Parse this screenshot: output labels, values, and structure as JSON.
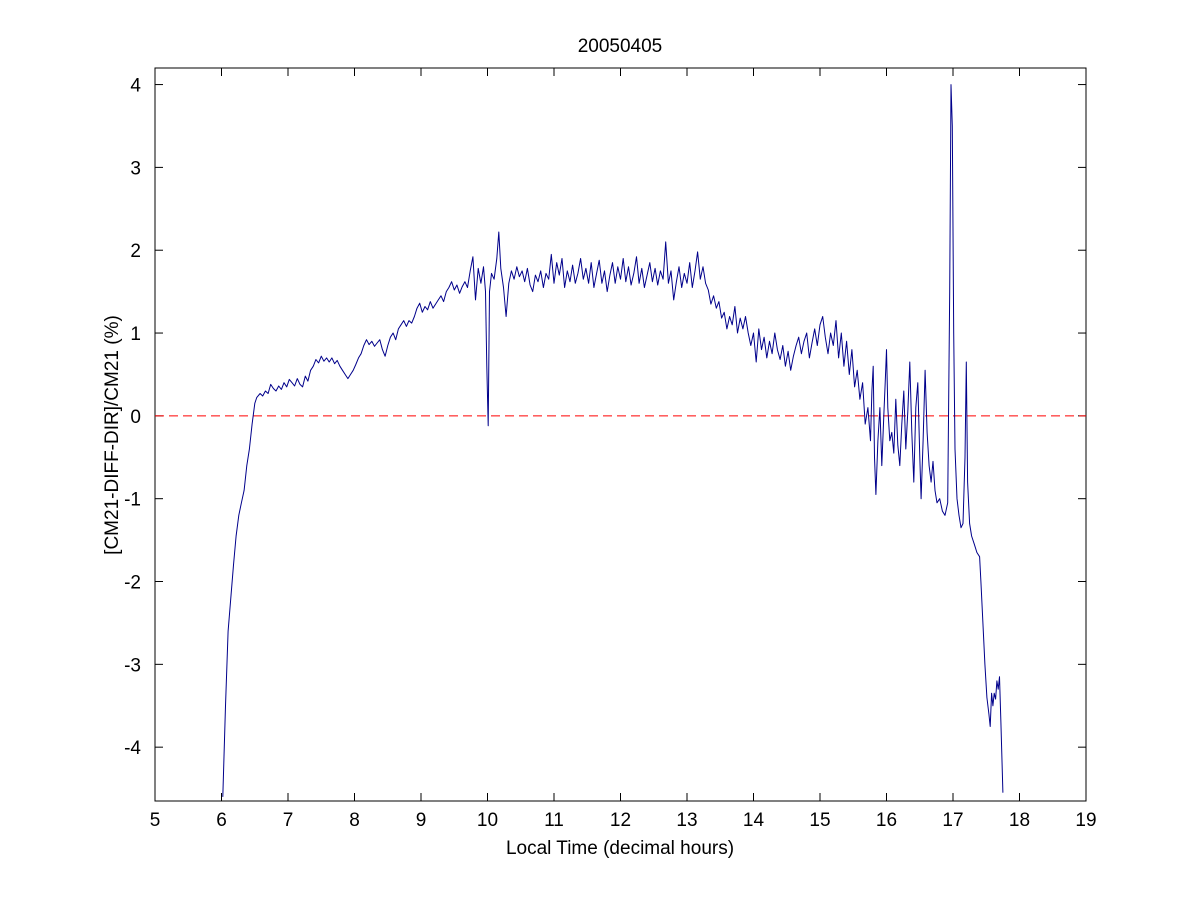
{
  "chart_data": {
    "type": "line",
    "title": "20050405",
    "xlabel": "Local Time (decimal hours)",
    "ylabel": "[CM21-DIFF-DIR]/CM21 (%)",
    "xlim": [
      5,
      19
    ],
    "ylim": [
      -4.65,
      4.2
    ],
    "xticks": [
      5,
      6,
      7,
      8,
      9,
      10,
      11,
      12,
      13,
      14,
      15,
      16,
      17,
      18,
      19
    ],
    "yticks": [
      -4,
      -3,
      -2,
      -1,
      0,
      1,
      2,
      3,
      4
    ],
    "grid": false,
    "reference_line": {
      "y": 0,
      "color": "#ff0000",
      "style": "dashed"
    },
    "series": [
      {
        "color": "#00008b",
        "points": [
          [
            6.02,
            -4.6
          ],
          [
            6.06,
            -3.5
          ],
          [
            6.1,
            -2.6
          ],
          [
            6.14,
            -2.2
          ],
          [
            6.18,
            -1.8
          ],
          [
            6.22,
            -1.45
          ],
          [
            6.26,
            -1.2
          ],
          [
            6.3,
            -1.05
          ],
          [
            6.34,
            -0.9
          ],
          [
            6.38,
            -0.6
          ],
          [
            6.42,
            -0.4
          ],
          [
            6.46,
            -0.1
          ],
          [
            6.5,
            0.15
          ],
          [
            6.53,
            0.22
          ],
          [
            6.58,
            0.27
          ],
          [
            6.62,
            0.24
          ],
          [
            6.66,
            0.3
          ],
          [
            6.7,
            0.27
          ],
          [
            6.74,
            0.38
          ],
          [
            6.78,
            0.33
          ],
          [
            6.82,
            0.3
          ],
          [
            6.86,
            0.36
          ],
          [
            6.9,
            0.32
          ],
          [
            6.94,
            0.4
          ],
          [
            6.98,
            0.35
          ],
          [
            7.02,
            0.44
          ],
          [
            7.06,
            0.4
          ],
          [
            7.1,
            0.36
          ],
          [
            7.14,
            0.45
          ],
          [
            7.18,
            0.38
          ],
          [
            7.22,
            0.35
          ],
          [
            7.26,
            0.48
          ],
          [
            7.3,
            0.42
          ],
          [
            7.34,
            0.55
          ],
          [
            7.38,
            0.6
          ],
          [
            7.42,
            0.68
          ],
          [
            7.46,
            0.64
          ],
          [
            7.5,
            0.72
          ],
          [
            7.54,
            0.66
          ],
          [
            7.58,
            0.7
          ],
          [
            7.62,
            0.65
          ],
          [
            7.66,
            0.7
          ],
          [
            7.7,
            0.63
          ],
          [
            7.74,
            0.67
          ],
          [
            7.78,
            0.6
          ],
          [
            7.82,
            0.55
          ],
          [
            7.86,
            0.5
          ],
          [
            7.9,
            0.45
          ],
          [
            7.94,
            0.5
          ],
          [
            7.98,
            0.55
          ],
          [
            8.02,
            0.62
          ],
          [
            8.06,
            0.7
          ],
          [
            8.1,
            0.75
          ],
          [
            8.14,
            0.85
          ],
          [
            8.18,
            0.92
          ],
          [
            8.22,
            0.86
          ],
          [
            8.26,
            0.9
          ],
          [
            8.3,
            0.84
          ],
          [
            8.34,
            0.88
          ],
          [
            8.38,
            0.92
          ],
          [
            8.42,
            0.8
          ],
          [
            8.46,
            0.72
          ],
          [
            8.5,
            0.85
          ],
          [
            8.54,
            0.95
          ],
          [
            8.58,
            1.0
          ],
          [
            8.62,
            0.92
          ],
          [
            8.66,
            1.05
          ],
          [
            8.7,
            1.1
          ],
          [
            8.74,
            1.15
          ],
          [
            8.78,
            1.08
          ],
          [
            8.82,
            1.15
          ],
          [
            8.86,
            1.12
          ],
          [
            8.9,
            1.2
          ],
          [
            8.94,
            1.3
          ],
          [
            8.98,
            1.36
          ],
          [
            9.02,
            1.25
          ],
          [
            9.06,
            1.32
          ],
          [
            9.1,
            1.28
          ],
          [
            9.14,
            1.38
          ],
          [
            9.18,
            1.3
          ],
          [
            9.22,
            1.35
          ],
          [
            9.26,
            1.4
          ],
          [
            9.3,
            1.45
          ],
          [
            9.34,
            1.38
          ],
          [
            9.38,
            1.5
          ],
          [
            9.42,
            1.55
          ],
          [
            9.46,
            1.62
          ],
          [
            9.5,
            1.52
          ],
          [
            9.54,
            1.58
          ],
          [
            9.58,
            1.48
          ],
          [
            9.62,
            1.56
          ],
          [
            9.66,
            1.62
          ],
          [
            9.7,
            1.55
          ],
          [
            9.74,
            1.75
          ],
          [
            9.78,
            1.92
          ],
          [
            9.82,
            1.4
          ],
          [
            9.86,
            1.78
          ],
          [
            9.9,
            1.6
          ],
          [
            9.94,
            1.8
          ],
          [
            9.97,
            1.5
          ],
          [
            9.99,
            0.6
          ],
          [
            10.01,
            -0.12
          ],
          [
            10.03,
            1.5
          ],
          [
            10.06,
            1.72
          ],
          [
            10.1,
            1.65
          ],
          [
            10.14,
            1.9
          ],
          [
            10.17,
            2.22
          ],
          [
            10.2,
            1.78
          ],
          [
            10.24,
            1.55
          ],
          [
            10.28,
            1.2
          ],
          [
            10.32,
            1.6
          ],
          [
            10.36,
            1.75
          ],
          [
            10.4,
            1.65
          ],
          [
            10.44,
            1.8
          ],
          [
            10.48,
            1.68
          ],
          [
            10.52,
            1.75
          ],
          [
            10.56,
            1.62
          ],
          [
            10.6,
            1.78
          ],
          [
            10.64,
            1.58
          ],
          [
            10.68,
            1.5
          ],
          [
            10.72,
            1.7
          ],
          [
            10.76,
            1.62
          ],
          [
            10.8,
            1.75
          ],
          [
            10.84,
            1.55
          ],
          [
            10.88,
            1.72
          ],
          [
            10.92,
            1.65
          ],
          [
            10.96,
            1.95
          ],
          [
            11.0,
            1.6
          ],
          [
            11.04,
            1.85
          ],
          [
            11.08,
            1.7
          ],
          [
            11.12,
            1.9
          ],
          [
            11.16,
            1.55
          ],
          [
            11.2,
            1.75
          ],
          [
            11.24,
            1.62
          ],
          [
            11.28,
            1.82
          ],
          [
            11.32,
            1.6
          ],
          [
            11.36,
            1.72
          ],
          [
            11.4,
            1.9
          ],
          [
            11.44,
            1.65
          ],
          [
            11.48,
            1.78
          ],
          [
            11.52,
            1.6
          ],
          [
            11.56,
            1.85
          ],
          [
            11.6,
            1.55
          ],
          [
            11.64,
            1.72
          ],
          [
            11.68,
            1.88
          ],
          [
            11.72,
            1.6
          ],
          [
            11.76,
            1.75
          ],
          [
            11.8,
            1.5
          ],
          [
            11.84,
            1.7
          ],
          [
            11.88,
            1.85
          ],
          [
            11.92,
            1.6
          ],
          [
            11.96,
            1.8
          ],
          [
            12.0,
            1.65
          ],
          [
            12.04,
            1.9
          ],
          [
            12.08,
            1.62
          ],
          [
            12.12,
            1.8
          ],
          [
            12.16,
            1.58
          ],
          [
            12.2,
            1.72
          ],
          [
            12.24,
            1.92
          ],
          [
            12.28,
            1.6
          ],
          [
            12.32,
            1.78
          ],
          [
            12.36,
            1.55
          ],
          [
            12.4,
            1.7
          ],
          [
            12.44,
            1.85
          ],
          [
            12.48,
            1.62
          ],
          [
            12.52,
            1.78
          ],
          [
            12.56,
            1.58
          ],
          [
            12.6,
            1.75
          ],
          [
            12.64,
            1.65
          ],
          [
            12.68,
            2.1
          ],
          [
            12.72,
            1.6
          ],
          [
            12.76,
            1.75
          ],
          [
            12.8,
            1.4
          ],
          [
            12.84,
            1.62
          ],
          [
            12.88,
            1.8
          ],
          [
            12.92,
            1.55
          ],
          [
            12.96,
            1.72
          ],
          [
            13.0,
            1.6
          ],
          [
            13.04,
            1.85
          ],
          [
            13.08,
            1.55
          ],
          [
            13.12,
            1.75
          ],
          [
            13.16,
            1.98
          ],
          [
            13.2,
            1.65
          ],
          [
            13.24,
            1.8
          ],
          [
            13.28,
            1.6
          ],
          [
            13.32,
            1.52
          ],
          [
            13.36,
            1.35
          ],
          [
            13.4,
            1.45
          ],
          [
            13.44,
            1.3
          ],
          [
            13.48,
            1.38
          ],
          [
            13.52,
            1.18
          ],
          [
            13.56,
            1.25
          ],
          [
            13.6,
            1.05
          ],
          [
            13.64,
            1.2
          ],
          [
            13.68,
            1.1
          ],
          [
            13.72,
            1.32
          ],
          [
            13.76,
            1.0
          ],
          [
            13.8,
            1.18
          ],
          [
            13.84,
            1.05
          ],
          [
            13.88,
            1.2
          ],
          [
            13.92,
            1.0
          ],
          [
            13.96,
            0.85
          ],
          [
            14.0,
            1.0
          ],
          [
            14.04,
            0.65
          ],
          [
            14.08,
            1.05
          ],
          [
            14.12,
            0.8
          ],
          [
            14.16,
            0.95
          ],
          [
            14.2,
            0.7
          ],
          [
            14.24,
            0.9
          ],
          [
            14.28,
            0.75
          ],
          [
            14.32,
            1.0
          ],
          [
            14.36,
            0.8
          ],
          [
            14.4,
            0.68
          ],
          [
            14.44,
            0.85
          ],
          [
            14.48,
            0.6
          ],
          [
            14.52,
            0.78
          ],
          [
            14.56,
            0.55
          ],
          [
            14.6,
            0.72
          ],
          [
            14.64,
            0.85
          ],
          [
            14.68,
            0.95
          ],
          [
            14.72,
            0.75
          ],
          [
            14.76,
            0.9
          ],
          [
            14.8,
            1.0
          ],
          [
            14.84,
            0.7
          ],
          [
            14.88,
            0.88
          ],
          [
            14.92,
            1.05
          ],
          [
            14.96,
            0.85
          ],
          [
            15.0,
            1.1
          ],
          [
            15.04,
            1.2
          ],
          [
            15.08,
            0.95
          ],
          [
            15.12,
            0.75
          ],
          [
            15.16,
            1.0
          ],
          [
            15.2,
            0.85
          ],
          [
            15.24,
            1.15
          ],
          [
            15.28,
            0.7
          ],
          [
            15.32,
            1.0
          ],
          [
            15.36,
            0.6
          ],
          [
            15.4,
            0.9
          ],
          [
            15.44,
            0.5
          ],
          [
            15.48,
            0.8
          ],
          [
            15.52,
            0.35
          ],
          [
            15.56,
            0.55
          ],
          [
            15.6,
            0.2
          ],
          [
            15.64,
            0.4
          ],
          [
            15.68,
            -0.1
          ],
          [
            15.72,
            0.1
          ],
          [
            15.76,
            -0.3
          ],
          [
            15.78,
            0.3
          ],
          [
            15.8,
            0.6
          ],
          [
            15.82,
            -0.5
          ],
          [
            15.84,
            -0.95
          ],
          [
            15.87,
            -0.3
          ],
          [
            15.9,
            0.1
          ],
          [
            15.93,
            -0.6
          ],
          [
            15.96,
            0.0
          ],
          [
            15.98,
            0.4
          ],
          [
            16.0,
            0.8
          ],
          [
            16.02,
            0.1
          ],
          [
            16.05,
            -0.3
          ],
          [
            16.08,
            -0.2
          ],
          [
            16.11,
            -0.45
          ],
          [
            16.14,
            0.2
          ],
          [
            16.17,
            -0.35
          ],
          [
            16.2,
            -0.6
          ],
          [
            16.23,
            -0.1
          ],
          [
            16.26,
            0.3
          ],
          [
            16.29,
            -0.4
          ],
          [
            16.32,
            0.05
          ],
          [
            16.35,
            0.65
          ],
          [
            16.38,
            -0.2
          ],
          [
            16.41,
            -0.8
          ],
          [
            16.44,
            0.1
          ],
          [
            16.47,
            0.4
          ],
          [
            16.5,
            -0.5
          ],
          [
            16.52,
            -1.0
          ],
          [
            16.55,
            -0.3
          ],
          [
            16.58,
            0.55
          ],
          [
            16.61,
            -0.2
          ],
          [
            16.64,
            -0.6
          ],
          [
            16.67,
            -0.8
          ],
          [
            16.7,
            -0.55
          ],
          [
            16.73,
            -0.9
          ],
          [
            16.76,
            -1.05
          ],
          [
            16.8,
            -1.0
          ],
          [
            16.84,
            -1.15
          ],
          [
            16.88,
            -1.2
          ],
          [
            16.92,
            -1.05
          ],
          [
            16.95,
            1.5
          ],
          [
            16.97,
            4.0
          ],
          [
            16.99,
            3.5
          ],
          [
            17.01,
            1.0
          ],
          [
            17.03,
            -0.4
          ],
          [
            17.06,
            -1.0
          ],
          [
            17.09,
            -1.2
          ],
          [
            17.12,
            -1.35
          ],
          [
            17.15,
            -1.3
          ],
          [
            17.18,
            -0.5
          ],
          [
            17.2,
            0.65
          ],
          [
            17.22,
            -0.8
          ],
          [
            17.25,
            -1.3
          ],
          [
            17.28,
            -1.45
          ],
          [
            17.32,
            -1.55
          ],
          [
            17.36,
            -1.65
          ],
          [
            17.4,
            -1.7
          ],
          [
            17.42,
            -2.0
          ],
          [
            17.45,
            -2.5
          ],
          [
            17.48,
            -3.0
          ],
          [
            17.51,
            -3.4
          ],
          [
            17.54,
            -3.6
          ],
          [
            17.56,
            -3.75
          ],
          [
            17.58,
            -3.35
          ],
          [
            17.6,
            -3.5
          ],
          [
            17.62,
            -3.35
          ],
          [
            17.64,
            -3.42
          ],
          [
            17.66,
            -3.2
          ],
          [
            17.68,
            -3.3
          ],
          [
            17.7,
            -3.15
          ],
          [
            17.72,
            -3.7
          ],
          [
            17.75,
            -4.55
          ]
        ]
      }
    ]
  }
}
